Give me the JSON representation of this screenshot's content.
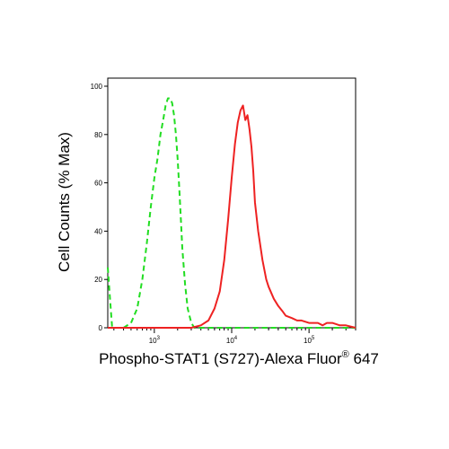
{
  "chart_data": {
    "type": "line",
    "xlabel": "Phospho-STAT1 (S727)-Alexa Fluor® 647",
    "ylabel": "Cell Counts (% Max)",
    "x_scale": "log",
    "xlim": [
      250,
      400000
    ],
    "ylim": [
      0,
      100
    ],
    "x_ticks": [
      {
        "value": 1000,
        "base": "10",
        "exp": "3"
      },
      {
        "value": 10000,
        "base": "10",
        "exp": "4"
      },
      {
        "value": 100000,
        "base": "10",
        "exp": "5"
      }
    ],
    "y_ticks": [
      0,
      20,
      40,
      60,
      80,
      100
    ],
    "grid": false,
    "legend": "none",
    "series": [
      {
        "color": "#22dd22",
        "style": "dashed",
        "x": [
          250,
          270,
          285,
          300,
          330,
          400,
          500,
          600,
          700,
          800,
          900,
          1000,
          1100,
          1200,
          1300,
          1400,
          1500,
          1600,
          1700,
          1800,
          1900,
          2000,
          2100,
          2200,
          2300,
          2500,
          2700,
          3000,
          3300,
          3600,
          4000,
          5000,
          7000,
          10000,
          30000,
          100000,
          400000
        ],
        "y": [
          25,
          10,
          0,
          0,
          0,
          0,
          2,
          8,
          20,
          35,
          50,
          62,
          70,
          80,
          86,
          92,
          95,
          95,
          93,
          88,
          80,
          70,
          58,
          45,
          33,
          18,
          8,
          2,
          0,
          0,
          0,
          0,
          0,
          0,
          0,
          0,
          0
        ]
      },
      {
        "color": "#ee2222",
        "style": "solid",
        "x": [
          250,
          1000,
          3000,
          4000,
          5000,
          6000,
          7000,
          8000,
          9000,
          10000,
          11000,
          12000,
          13000,
          14000,
          15000,
          16000,
          17000,
          18000,
          19000,
          20000,
          22000,
          25000,
          28000,
          30000,
          35000,
          40000,
          45000,
          50000,
          60000,
          70000,
          80000,
          100000,
          130000,
          150000,
          170000,
          200000,
          250000,
          300000,
          400000
        ],
        "y": [
          0,
          0,
          0,
          1,
          3,
          8,
          15,
          28,
          45,
          62,
          76,
          85,
          90,
          92,
          86,
          88,
          82,
          75,
          65,
          52,
          40,
          28,
          20,
          17,
          12,
          9,
          7,
          5,
          4,
          3,
          3,
          2,
          2,
          1,
          2,
          2,
          1,
          1,
          0
        ]
      }
    ]
  }
}
